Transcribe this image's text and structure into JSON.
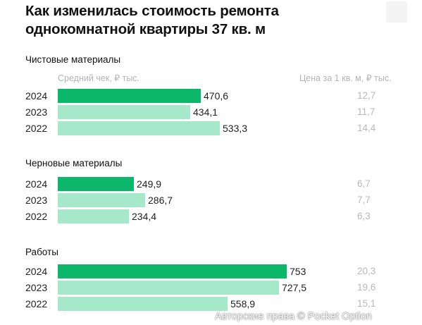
{
  "title": "Как изменилась стоимость ремонта однокомнатной квартиры 37 кв. м",
  "column_headers": {
    "left": "Средний чек, ₽ тыс.",
    "right": "Цена за 1 кв. м, ₽ тыс."
  },
  "watermark": "Авторские права © Pocket Option",
  "colors": {
    "current_year": "#0db76a",
    "previous_years": "#a6e9ca"
  },
  "chart_data": {
    "type": "bar",
    "orientation": "horizontal",
    "groups": [
      {
        "name": "Чистовые материалы",
        "rows": [
          {
            "year": "2024",
            "value": 470.6,
            "value_label": "470,6",
            "price_label": "12,7"
          },
          {
            "year": "2023",
            "value": 434.1,
            "value_label": "434,1",
            "price_label": "11,7"
          },
          {
            "year": "2022",
            "value": 533.3,
            "value_label": "533,3",
            "price_label": "14,4"
          }
        ]
      },
      {
        "name": "Черновые материалы",
        "rows": [
          {
            "year": "2024",
            "value": 249.9,
            "value_label": "249,9",
            "price_label": "6,7"
          },
          {
            "year": "2023",
            "value": 286.7,
            "value_label": "286,7",
            "price_label": "7,7"
          },
          {
            "year": "2022",
            "value": 234.4,
            "value_label": "234,4",
            "price_label": "6,3"
          }
        ]
      },
      {
        "name": "Работы",
        "rows": [
          {
            "year": "2024",
            "value": 753,
            "value_label": "753",
            "price_label": "20,3"
          },
          {
            "year": "2023",
            "value": 727.5,
            "value_label": "727,5",
            "price_label": "19,6"
          },
          {
            "year": "2022",
            "value": 558.9,
            "value_label": "558,9",
            "price_label": "15,1"
          }
        ]
      }
    ]
  }
}
